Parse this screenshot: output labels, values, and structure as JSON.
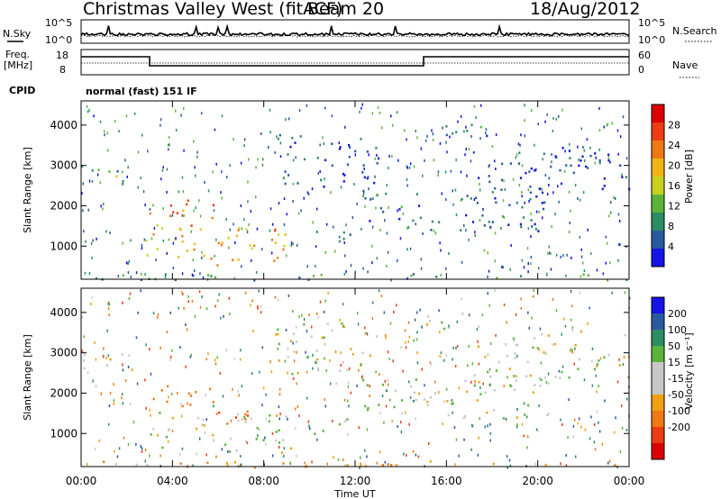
{
  "header": {
    "title": "Christmas Valley West (fitACF)",
    "beam": "Beam 20",
    "date": "18/Aug/2012"
  },
  "noise_panel": {
    "left_label": "N.Sky",
    "right_label": "N.Search",
    "left_ticks": [
      "10^5",
      "10^0"
    ],
    "right_ticks": [
      "10^5",
      "10^0"
    ]
  },
  "freq_panel": {
    "left_label_1": "Freq.",
    "left_label_2": "[MHz]",
    "left_ticks": [
      "18",
      "8"
    ],
    "right_label": "Nave",
    "right_ticks": [
      "60",
      "0"
    ]
  },
  "cpid": {
    "label": "CPID",
    "value": "normal (fast) 151 IF"
  },
  "colors": {
    "power": [
      "#1414e6",
      "#285aa0",
      "#2d8c64",
      "#5ab43c",
      "#c8d21e",
      "#f0b414",
      "#f07814",
      "#ec3c14",
      "#dc0000"
    ],
    "velocity": [
      "#1414e6",
      "#285aa0",
      "#2d8c64",
      "#5ab43c",
      "#c8c8c8",
      "#c8c8c8",
      "#f0a014",
      "#f07814",
      "#ec3c14",
      "#dc0000"
    ]
  },
  "chart_data": [
    {
      "type": "heatmap",
      "name": "power",
      "ylabel": "Slant Range [km]",
      "ylim": [
        180,
        4600
      ],
      "yticks": [
        "1000",
        "2000",
        "3000",
        "4000"
      ],
      "colorbar_label": "Power [dB]",
      "colorbar_ticks": [
        "4",
        "8",
        "12",
        "16",
        "20",
        "24",
        "28"
      ],
      "colorbar_range": [
        0,
        32
      ],
      "regions": [
        {
          "t": [
            0,
            2.2
          ],
          "r": [
            2500,
            3050
          ],
          "v": 10
        },
        {
          "t": [
            2.8,
            6.0
          ],
          "r": [
            1700,
            2200
          ],
          "v": 24
        },
        {
          "t": [
            2.8,
            9.2
          ],
          "r": [
            550,
            1550
          ],
          "v": 20
        },
        {
          "t": [
            0,
            24
          ],
          "r": [
            180,
            340
          ],
          "v": 9
        },
        {
          "t": [
            15.0,
            17.8
          ],
          "r": [
            3600,
            4050
          ],
          "v": 6
        },
        {
          "t": [
            14.0,
            20.5
          ],
          "r": [
            1400,
            2400
          ],
          "v": 6
        },
        {
          "t": [
            12.3,
            14.8
          ],
          "r": [
            1600,
            2400
          ],
          "v": 7
        },
        {
          "t": [
            10.0,
            11.8
          ],
          "r": [
            1000,
            1450
          ],
          "v": 7
        },
        {
          "t": [
            17.0,
            24.0
          ],
          "r": [
            2400,
            3500
          ],
          "v": 5
        },
        {
          "t": [
            8.5,
            13.0
          ],
          "r": [
            2500,
            3800
          ],
          "v": 5
        }
      ]
    },
    {
      "type": "heatmap",
      "name": "velocity",
      "xlabel": "Time UT",
      "xlim": [
        0,
        24
      ],
      "xticks": [
        "00:00",
        "04:00",
        "08:00",
        "12:00",
        "16:00",
        "20:00",
        "00:00"
      ],
      "ylabel": "Slant Range [km]",
      "ylim": [
        180,
        4600
      ],
      "yticks": [
        "1000",
        "2000",
        "3000",
        "4000"
      ],
      "colorbar_label": "Velocity [m s⁻¹]",
      "colorbar_ticks": [
        "200",
        "100",
        "50",
        "15",
        "-15",
        "-50",
        "-100",
        "-200"
      ],
      "colorbar_range": [
        -250,
        250
      ],
      "regions": [
        {
          "t": [
            0,
            2.2
          ],
          "r": [
            2500,
            3050
          ],
          "v": 0
        },
        {
          "t": [
            2.8,
            6.0
          ],
          "r": [
            1700,
            2200
          ],
          "v": -80
        },
        {
          "t": [
            5.5,
            8.0
          ],
          "r": [
            1200,
            1600
          ],
          "v": -110
        },
        {
          "t": [
            2.8,
            9.2
          ],
          "r": [
            550,
            1550
          ],
          "v": 0
        },
        {
          "t": [
            0,
            24
          ],
          "r": [
            180,
            340
          ],
          "v": -40
        },
        {
          "t": [
            15.0,
            17.8
          ],
          "r": [
            3600,
            4050
          ],
          "v": 0
        },
        {
          "t": [
            14.0,
            20.5
          ],
          "r": [
            1400,
            2400
          ],
          "v": 0
        },
        {
          "t": [
            12.3,
            14.8
          ],
          "r": [
            1600,
            2400
          ],
          "v": 30
        },
        {
          "t": [
            10.0,
            11.8
          ],
          "r": [
            1000,
            1450
          ],
          "v": 40
        },
        {
          "t": [
            17.0,
            24.0
          ],
          "r": [
            2400,
            3500
          ],
          "v": 0
        },
        {
          "t": [
            8.5,
            13.0
          ],
          "r": [
            2500,
            3800
          ],
          "v": 0
        }
      ]
    }
  ]
}
